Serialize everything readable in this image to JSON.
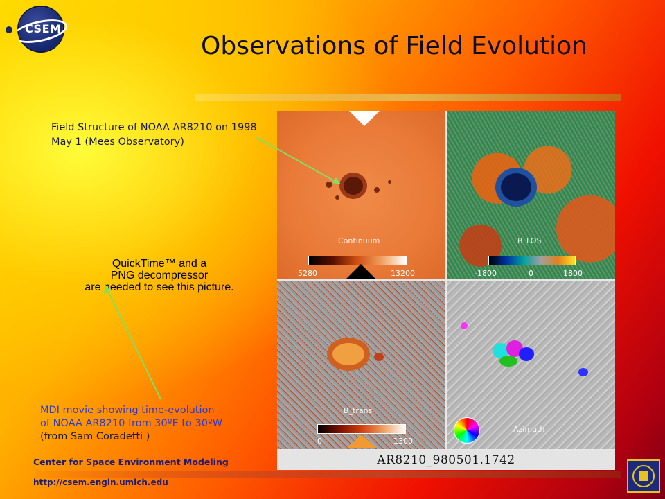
{
  "slide": {
    "title": "Observations of Field Evolution",
    "logo_text": "CSEM"
  },
  "captions": {
    "field_structure": "Field Structure of NOAA AR8210 on 1998 May 1 (Mees Observatory)",
    "quicktime_line1": "QuickTime™ and a",
    "quicktime_line2": "PNG decompressor",
    "quicktime_line3": "are needed to see this picture.",
    "mdi_line1": "MDI movie showing time-evolution",
    "mdi_line2": "of NOAA AR8210 from 30ºE to 30ºW",
    "mdi_line3": "(from Sam Coradetti )"
  },
  "panel": {
    "continuum_label": "Continuum",
    "continuum_min": "5280",
    "continuum_max": "13200",
    "blos_label": "B_LOS",
    "blos_min": "-1800",
    "blos_mid": "0",
    "blos_max": "1800",
    "btrans_label": "B_trans",
    "btrans_min": "0",
    "btrans_max": "1300",
    "azimuth_label": "Azimuth",
    "image_id": "AR8210_980501.1742"
  },
  "footer": {
    "org": "Center for Space Environment Modeling",
    "url": "http://csem.engin.umich.edu"
  },
  "colors": {
    "title": "#0d0d28",
    "caption_blue": "#2a3acc",
    "footer_text": "#1c1c70",
    "arrow": "#80e060"
  }
}
